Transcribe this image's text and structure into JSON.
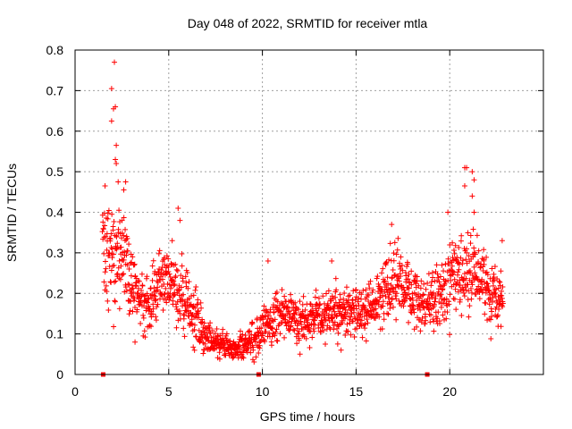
{
  "chart_data": {
    "type": "scatter",
    "title": "Day 048 of 2022, SRMTID for receiver mtla",
    "xlabel": "GPS time / hours",
    "ylabel": "SRMTID / TECUs",
    "xlim": [
      0,
      25
    ],
    "ylim": [
      0,
      0.8
    ],
    "xticks": [
      0,
      5,
      10,
      15,
      20
    ],
    "xtick_labels": [
      "0",
      "5",
      "10",
      "15",
      "20"
    ],
    "yticks": [
      0,
      0.1,
      0.2,
      0.3,
      0.4,
      0.5,
      0.6,
      0.7,
      0.8
    ],
    "ytick_labels": [
      "0",
      "0.1",
      "0.2",
      "0.3",
      "0.4",
      "0.5",
      "0.6",
      "0.7",
      "0.8"
    ],
    "grid": true,
    "marker": "+",
    "color": "#ff0000",
    "profile_x": [
      1.45,
      1.8,
      2.2,
      2.6,
      3.0,
      3.5,
      4.0,
      4.5,
      5.0,
      5.5,
      6.0,
      6.5,
      7.0,
      7.5,
      8.0,
      8.5,
      9.0,
      9.5,
      10.0,
      10.5,
      11.0,
      11.5,
      12.0,
      12.5,
      13.0,
      13.5,
      14.0,
      14.5,
      15.0,
      15.5,
      16.0,
      16.5,
      17.0,
      17.5,
      18.0,
      18.5,
      19.0,
      19.5,
      20.0,
      20.5,
      21.0,
      21.5,
      22.0,
      22.5,
      22.85
    ],
    "profile_y": [
      0.34,
      0.27,
      0.3,
      0.3,
      0.22,
      0.18,
      0.18,
      0.22,
      0.24,
      0.21,
      0.17,
      0.14,
      0.1,
      0.08,
      0.07,
      0.065,
      0.07,
      0.09,
      0.11,
      0.13,
      0.15,
      0.15,
      0.14,
      0.13,
      0.14,
      0.15,
      0.16,
      0.16,
      0.15,
      0.15,
      0.17,
      0.2,
      0.24,
      0.22,
      0.19,
      0.17,
      0.18,
      0.2,
      0.22,
      0.24,
      0.24,
      0.24,
      0.21,
      0.19,
      0.2
    ],
    "profile_spread": [
      0.09,
      0.08,
      0.09,
      0.09,
      0.06,
      0.05,
      0.05,
      0.05,
      0.05,
      0.05,
      0.05,
      0.04,
      0.03,
      0.025,
      0.02,
      0.02,
      0.025,
      0.03,
      0.035,
      0.04,
      0.04,
      0.04,
      0.04,
      0.035,
      0.035,
      0.04,
      0.04,
      0.04,
      0.04,
      0.04,
      0.045,
      0.05,
      0.06,
      0.05,
      0.05,
      0.045,
      0.05,
      0.055,
      0.06,
      0.06,
      0.06,
      0.06,
      0.055,
      0.05,
      0.05
    ],
    "n_points": 1700,
    "outliers": [
      {
        "x": 1.95,
        "y": 0.705
      },
      {
        "x": 2.1,
        "y": 0.77
      },
      {
        "x": 2.15,
        "y": 0.66
      },
      {
        "x": 2.05,
        "y": 0.655
      },
      {
        "x": 1.95,
        "y": 0.625
      },
      {
        "x": 2.2,
        "y": 0.565
      },
      {
        "x": 2.15,
        "y": 0.53
      },
      {
        "x": 2.2,
        "y": 0.52
      },
      {
        "x": 2.3,
        "y": 0.475
      },
      {
        "x": 2.7,
        "y": 0.475
      },
      {
        "x": 1.6,
        "y": 0.465
      },
      {
        "x": 2.6,
        "y": 0.455
      },
      {
        "x": 5.5,
        "y": 0.41
      },
      {
        "x": 5.6,
        "y": 0.38
      },
      {
        "x": 3.2,
        "y": 0.08
      },
      {
        "x": 10.3,
        "y": 0.28
      },
      {
        "x": 13.7,
        "y": 0.28
      },
      {
        "x": 14.2,
        "y": 0.06
      },
      {
        "x": 16.9,
        "y": 0.37
      },
      {
        "x": 19.9,
        "y": 0.4
      },
      {
        "x": 20.8,
        "y": 0.51
      },
      {
        "x": 20.9,
        "y": 0.51
      },
      {
        "x": 21.2,
        "y": 0.5
      },
      {
        "x": 21.3,
        "y": 0.48
      },
      {
        "x": 20.8,
        "y": 0.465
      },
      {
        "x": 21.2,
        "y": 0.44
      },
      {
        "x": 21.3,
        "y": 0.4
      },
      {
        "x": 22.8,
        "y": 0.33
      }
    ],
    "baseline_markers": [
      {
        "x": 1.5,
        "y": 0
      },
      {
        "x": 9.8,
        "y": 0
      },
      {
        "x": 18.8,
        "y": 0
      }
    ]
  }
}
